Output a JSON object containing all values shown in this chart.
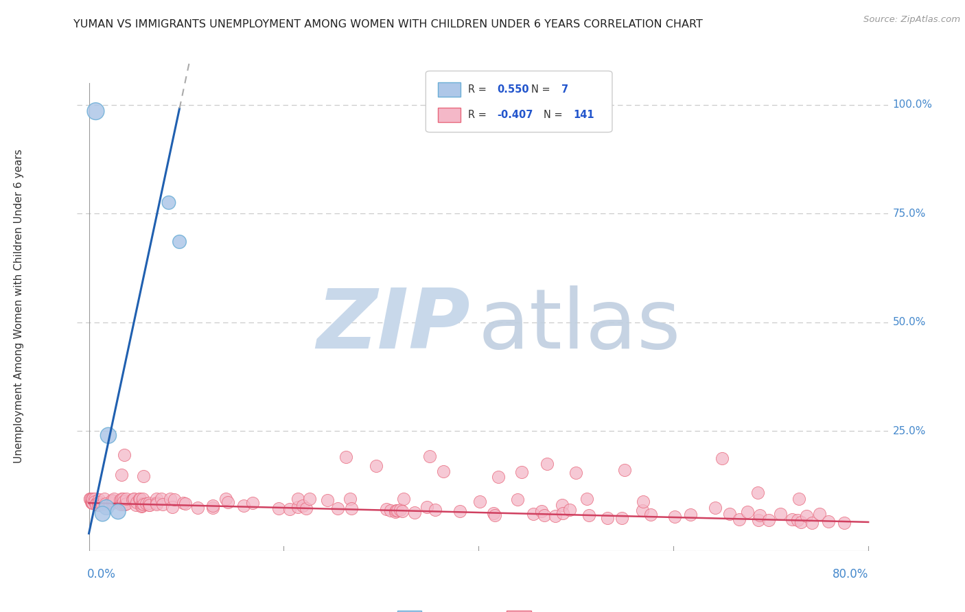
{
  "title": "YUMAN VS IMMIGRANTS UNEMPLOYMENT AMONG WOMEN WITH CHILDREN UNDER 6 YEARS CORRELATION CHART",
  "source": "Source: ZipAtlas.com",
  "ylabel": "Unemployment Among Women with Children Under 6 years",
  "yuman_scatter_color": "#aec7e8",
  "yuman_edge_color": "#6baed6",
  "immigrants_scatter_color": "#f4b8c8",
  "immigrants_edge_color": "#e8687c",
  "trend_color_yuman": "#2060b0",
  "trend_color_immigrants": "#d04060",
  "background_color": "#ffffff",
  "grid_color": "#cccccc",
  "watermark_zip_color": "#c8d8ea",
  "watermark_atlas_color": "#c0cfe0",
  "title_color": "#222222",
  "axis_label_color": "#4488cc",
  "legend_R_color": "#2255cc",
  "legend_text_color": "#333333"
}
